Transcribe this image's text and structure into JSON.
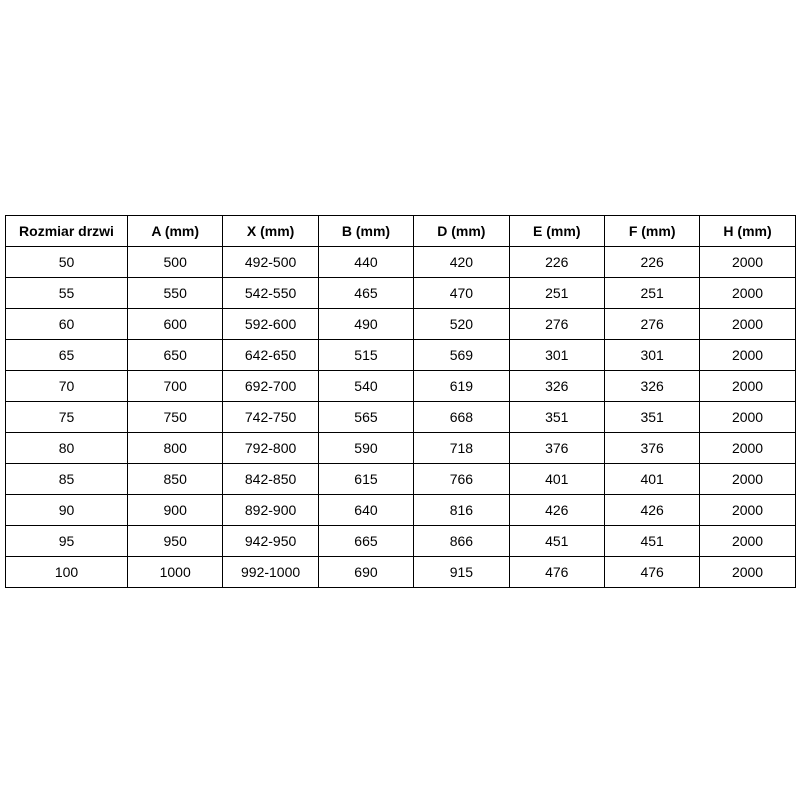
{
  "colors": {
    "background": "#ffffff",
    "border": "#000000",
    "text": "#000000"
  },
  "chart_data": {
    "type": "table",
    "title": "",
    "columns": [
      "Rozmiar drzwi",
      "A (mm)",
      "X (mm)",
      "B (mm)",
      "D (mm)",
      "E (mm)",
      "F (mm)",
      "H (mm)"
    ],
    "rows": [
      [
        "50",
        "500",
        "492-500",
        "440",
        "420",
        "226",
        "226",
        "2000"
      ],
      [
        "55",
        "550",
        "542-550",
        "465",
        "470",
        "251",
        "251",
        "2000"
      ],
      [
        "60",
        "600",
        "592-600",
        "490",
        "520",
        "276",
        "276",
        "2000"
      ],
      [
        "65",
        "650",
        "642-650",
        "515",
        "569",
        "301",
        "301",
        "2000"
      ],
      [
        "70",
        "700",
        "692-700",
        "540",
        "619",
        "326",
        "326",
        "2000"
      ],
      [
        "75",
        "750",
        "742-750",
        "565",
        "668",
        "351",
        "351",
        "2000"
      ],
      [
        "80",
        "800",
        "792-800",
        "590",
        "718",
        "376",
        "376",
        "2000"
      ],
      [
        "85",
        "850",
        "842-850",
        "615",
        "766",
        "401",
        "401",
        "2000"
      ],
      [
        "90",
        "900",
        "892-900",
        "640",
        "816",
        "426",
        "426",
        "2000"
      ],
      [
        "95",
        "950",
        "942-950",
        "665",
        "866",
        "451",
        "451",
        "2000"
      ],
      [
        "100",
        "1000",
        "992-1000",
        "690",
        "915",
        "476",
        "476",
        "2000"
      ]
    ]
  }
}
